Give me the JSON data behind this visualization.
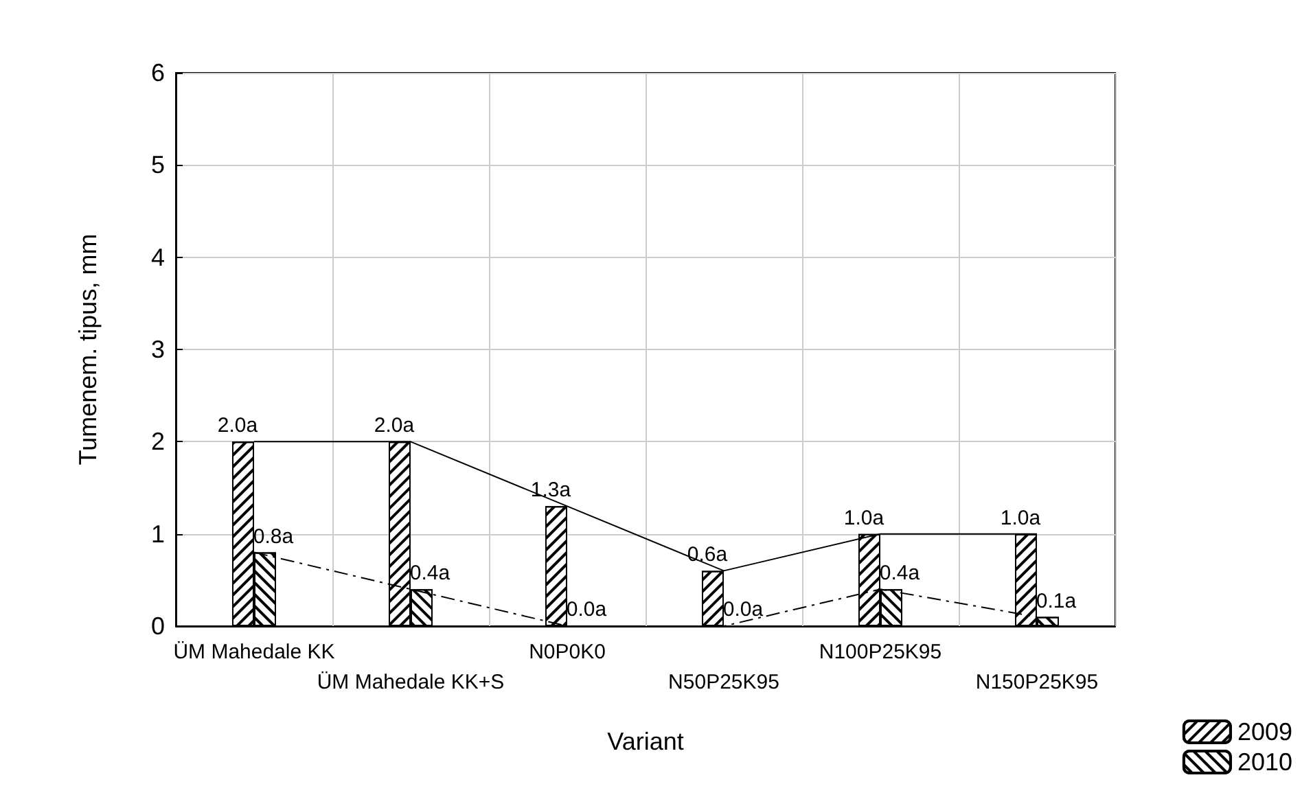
{
  "chart_data": {
    "type": "bar",
    "xlabel": "Variant",
    "ylabel": "Tumenem. tipus, mm",
    "categories": [
      "ÜM Mahedale KK",
      "ÜM Mahedale KK+S",
      "N0P0K0",
      "N50P25K95",
      "N100P25K95",
      "N150P25K95"
    ],
    "series": [
      {
        "name": "2009",
        "color": "#000000",
        "values": [
          2.0,
          2.0,
          1.3,
          0.6,
          1.0,
          1.0
        ],
        "value_labels": [
          "2.0a",
          "2.0a",
          "1.3a",
          "0.6a",
          "1.0a",
          "1.0a"
        ]
      },
      {
        "name": "2010",
        "color": "#000000",
        "values": [
          0.8,
          0.4,
          0.0,
          0.0,
          0.4,
          0.1
        ],
        "value_labels": [
          "0.8a",
          "0.4a",
          "0.0a",
          "0.0a",
          "0.4a",
          "0.1a"
        ]
      },
      {
        "type": "line",
        "color": "#000000",
        "line_style": "solid",
        "values": [
          2.0,
          2.0,
          1.3,
          0.6,
          1.0,
          1.0
        ]
      },
      {
        "type": "line",
        "color": "#000000",
        "line_style": "dashed",
        "values": [
          0.8,
          0.4,
          0.0,
          0.0,
          0.4,
          0.1
        ]
      }
    ],
    "ylim": [
      0,
      6
    ],
    "yticks": [
      0,
      1,
      2,
      3,
      4,
      5,
      6
    ],
    "grid": true,
    "legend": "bottom right",
    "marker": "none"
  }
}
